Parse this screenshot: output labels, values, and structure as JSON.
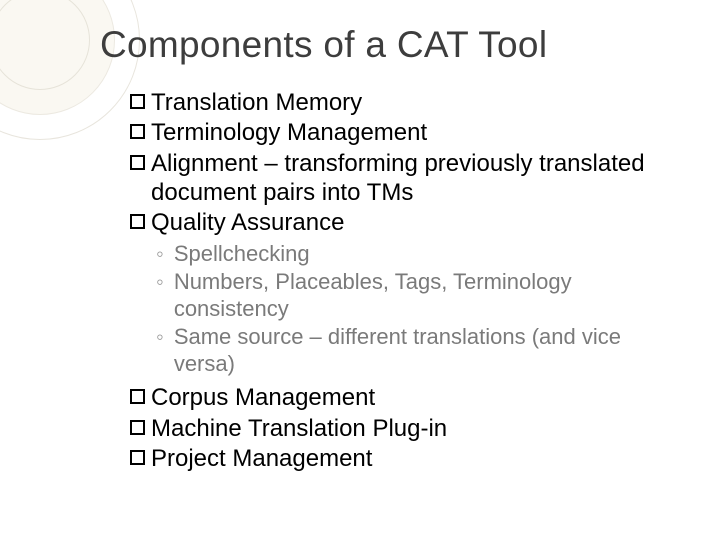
{
  "slide": {
    "title": "Components of a CAT Tool",
    "title_color": "#3d3d3d",
    "title_fontsize": 37,
    "background_color": "#ffffff",
    "deco_ring_color": "#e8e5dd",
    "deco_fill_color": "#faf8f2",
    "bullets": [
      {
        "text": "Translation Memory"
      },
      {
        "text": "Terminology Management"
      },
      {
        "text": "Alignment – transforming previously translated document pairs into TMs"
      },
      {
        "text": "Quality Assurance"
      }
    ],
    "sub_bullets": [
      {
        "text": "Spellchecking"
      },
      {
        "text": "Numbers, Placeables, Tags, Terminology consistency"
      },
      {
        "text": "Same source – different translations (and vice versa)"
      }
    ],
    "bullets2": [
      {
        "text": "Corpus Management"
      },
      {
        "text": "Machine Translation Plug-in"
      },
      {
        "text": "Project Management"
      }
    ],
    "bullet_fontsize": 24,
    "bullet_color": "#000000",
    "bullet_marker_border": "#000000",
    "sub_fontsize": 22,
    "sub_color": "#7a7a7a",
    "sub_marker": "◦"
  }
}
